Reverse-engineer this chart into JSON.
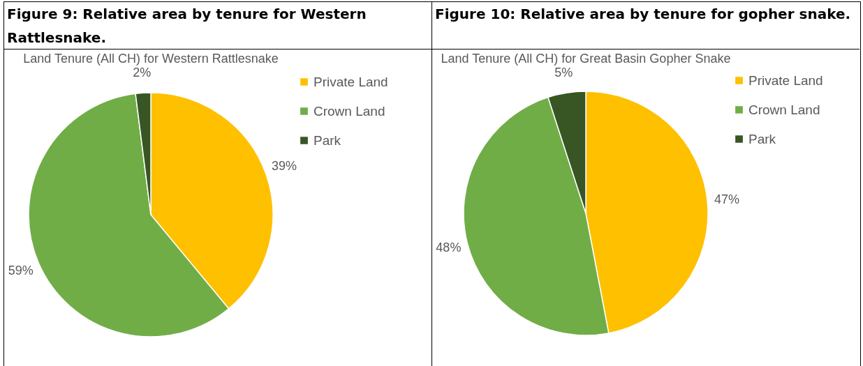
{
  "chart_data": [
    {
      "type": "pie",
      "title": "Figure 9: Relative area by tenure for Western Rattlesnake.",
      "subtitle": "Land Tenure (All CH) for Western Rattlesnake",
      "categories": [
        "Private Land",
        "Crown Land",
        "Park"
      ],
      "values": [
        39,
        59,
        2
      ],
      "value_labels": [
        "39%",
        "59%",
        "2%"
      ],
      "colors": [
        "#ffc000",
        "#70ad47",
        "#375623"
      ],
      "legend": "right"
    },
    {
      "type": "pie",
      "title": "Figure 10: Relative area by tenure for gopher snake.",
      "subtitle": "Land Tenure (All CH) for Great Basin Gopher Snake",
      "categories": [
        "Private Land",
        "Crown Land",
        "Park"
      ],
      "values": [
        47,
        48,
        5
      ],
      "value_labels": [
        "47%",
        "48%",
        "5%"
      ],
      "colors": [
        "#ffc000",
        "#70ad47",
        "#375623"
      ],
      "legend": "right"
    }
  ]
}
